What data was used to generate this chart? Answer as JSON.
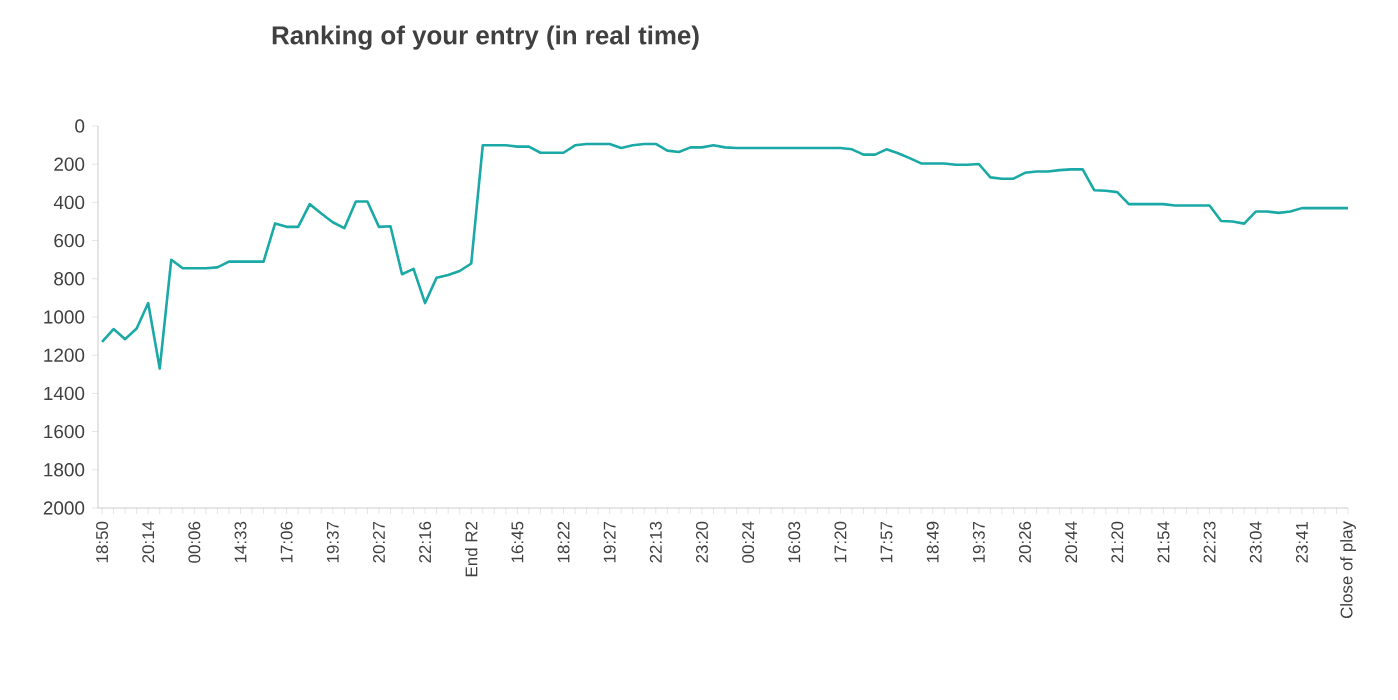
{
  "chart_data": {
    "type": "line",
    "title": "Ranking of your entry (in real time)",
    "categories": [
      "18:50",
      null,
      null,
      null,
      "20:14",
      null,
      null,
      null,
      "00:06",
      null,
      null,
      null,
      "14:33",
      null,
      null,
      null,
      "17:06",
      null,
      null,
      null,
      "19:37",
      null,
      null,
      null,
      "20:27",
      null,
      null,
      null,
      "22:16",
      null,
      null,
      null,
      "End R2",
      null,
      null,
      null,
      "16:45",
      null,
      null,
      null,
      "18:22",
      null,
      null,
      null,
      "19:27",
      null,
      null,
      null,
      "22:13",
      null,
      null,
      null,
      "23:20",
      null,
      null,
      null,
      "00:24",
      null,
      null,
      null,
      "16:03",
      null,
      null,
      null,
      "17:20",
      null,
      null,
      null,
      "17:57",
      null,
      null,
      null,
      "18:49",
      null,
      null,
      null,
      "19:37",
      null,
      null,
      null,
      "20:26",
      null,
      null,
      null,
      "20:44",
      null,
      null,
      null,
      "21:20",
      null,
      null,
      null,
      "21:54",
      null,
      null,
      null,
      "22:23",
      null,
      null,
      null,
      "23:04",
      null,
      null,
      null,
      "23:41",
      null,
      null,
      null,
      "Close of play"
    ],
    "values": [
      1130,
      1063,
      1116,
      1060,
      927,
      1270,
      700,
      745,
      745,
      745,
      740,
      710,
      710,
      710,
      710,
      510,
      528,
      528,
      409,
      458,
      504,
      535,
      395,
      395,
      528,
      525,
      776,
      748,
      927,
      794,
      780,
      759,
      720,
      101,
      101,
      101,
      108,
      108,
      140,
      140,
      140,
      101,
      94,
      94,
      94,
      115,
      101,
      94,
      94,
      129,
      136,
      112,
      112,
      101,
      112,
      115,
      115,
      115,
      115,
      115,
      115,
      115,
      115,
      115,
      115,
      122,
      150,
      150,
      122,
      143,
      168,
      196,
      196,
      196,
      203,
      203,
      199,
      269,
      276,
      276,
      245,
      238,
      238,
      231,
      227,
      227,
      336,
      339,
      346,
      409,
      409,
      409,
      409,
      416,
      416,
      416,
      416,
      497,
      500,
      511,
      448,
      448,
      455,
      448,
      430,
      430,
      430,
      430,
      430
    ],
    "color": "#1aa9a6",
    "ylim": [
      2000,
      0
    ],
    "yticks": [
      0,
      200,
      400,
      600,
      800,
      1000,
      1200,
      1400,
      1600,
      1800,
      2000
    ],
    "grid": false
  }
}
